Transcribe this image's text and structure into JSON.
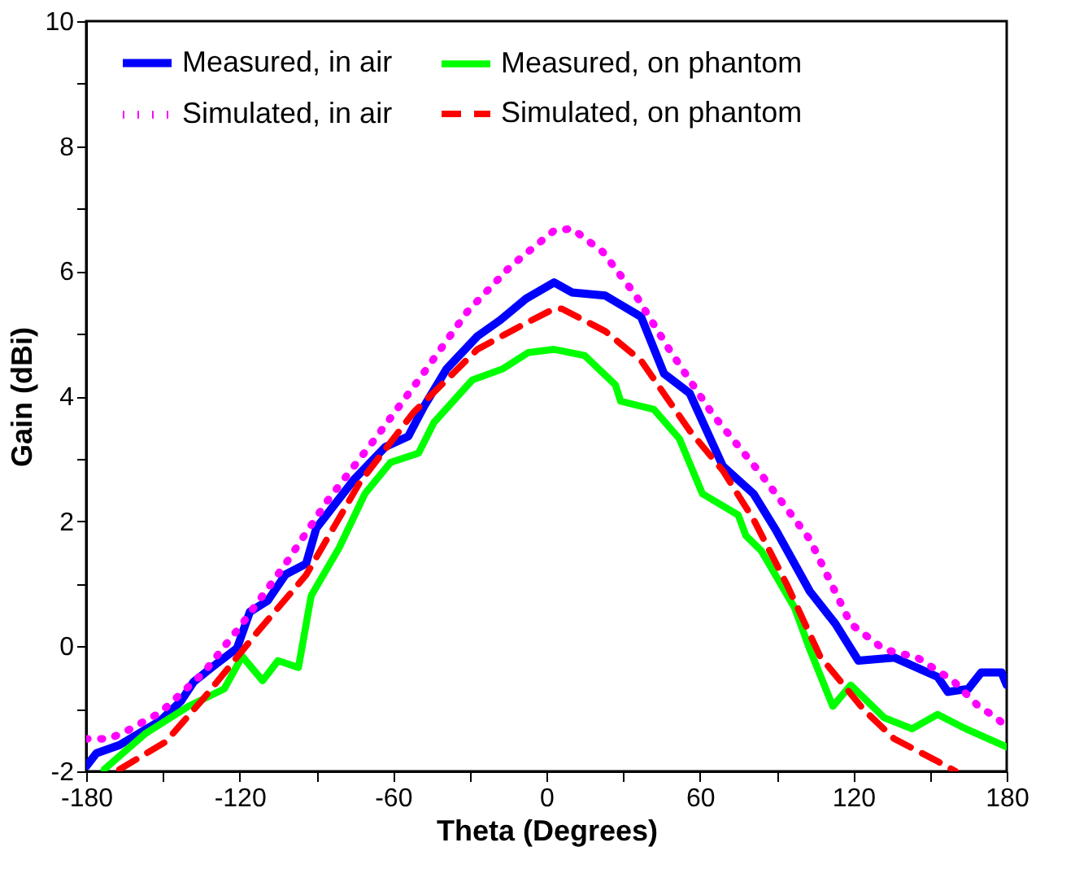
{
  "chart_data": {
    "type": "line",
    "xlabel": "Theta (Degrees)",
    "ylabel": "Gain (dBi)",
    "xlim": [
      -180,
      180
    ],
    "ylim": [
      -2,
      10
    ],
    "xticks": [
      -180,
      {
        "value": -150,
        "label": null
      },
      -120,
      {
        "value": -90,
        "label": null
      },
      -60,
      {
        "value": -30,
        "label": null
      },
      0,
      {
        "value": 30,
        "label": null
      },
      60,
      {
        "value": 90,
        "label": null
      },
      120,
      {
        "value": 150,
        "label": null
      },
      180
    ],
    "yticks": [
      -2,
      {
        "value": -1,
        "label": null
      },
      0,
      {
        "value": 1,
        "label": null
      },
      2,
      {
        "value": 3,
        "label": null
      },
      4,
      {
        "value": 5,
        "label": null
      },
      6,
      {
        "value": 7,
        "label": null
      },
      8,
      {
        "value": 9,
        "label": null
      },
      10
    ],
    "grid": false,
    "legend": "top",
    "marker": "none",
    "series": [
      {
        "name": "Measured, in air",
        "color": "#0000ff",
        "line_style": "solid",
        "x": [
          -180,
          -176,
          -167,
          -151,
          -143,
          -138,
          -130,
          -121,
          -116,
          -109,
          -102,
          -94,
          -90,
          -75,
          -63,
          -54,
          -48,
          -39,
          -27,
          -18,
          -8,
          3,
          10,
          23,
          37,
          46,
          56,
          69,
          81,
          90,
          103,
          113,
          122,
          136,
          153,
          157,
          165,
          170,
          178,
          180
        ],
        "values": [
          -1.92,
          -1.71,
          -1.58,
          -1.19,
          -0.88,
          -0.57,
          -0.31,
          -0.03,
          0.55,
          0.73,
          1.15,
          1.32,
          1.89,
          2.68,
          3.19,
          3.36,
          3.83,
          4.44,
          4.96,
          5.22,
          5.56,
          5.82,
          5.66,
          5.61,
          5.27,
          4.36,
          4.05,
          2.88,
          2.44,
          1.84,
          0.88,
          0.36,
          -0.23,
          -0.18,
          -0.49,
          -0.73,
          -0.68,
          -0.42,
          -0.42,
          -0.62
        ]
      },
      {
        "name": "Simulated, in air",
        "color": "#ff00ff",
        "line_style": "dotted",
        "x": [
          -180,
          -171,
          -164,
          -151,
          -134,
          -119,
          -102,
          -86,
          -67,
          -50,
          -31,
          -14,
          3,
          10,
          22,
          35,
          48,
          65,
          84,
          103,
          119,
          132,
          145,
          159,
          169,
          176,
          180
        ],
        "values": [
          -1.48,
          -1.48,
          -1.35,
          -1.06,
          -0.42,
          0.36,
          1.32,
          2.31,
          3.32,
          4.26,
          5.35,
          6.08,
          6.65,
          6.68,
          6.31,
          5.61,
          4.75,
          3.71,
          2.75,
          1.71,
          0.36,
          -0.05,
          -0.18,
          -0.55,
          -0.96,
          -1.14,
          -1.3
        ]
      },
      {
        "name": "Measured, on phantom",
        "color": "#00ff00",
        "line_style": "solid",
        "x": [
          -173,
          -157,
          -140,
          -126,
          -119,
          -111,
          -105,
          -97,
          -92,
          -81,
          -71,
          -61,
          -50,
          -44,
          -29,
          -17,
          -7,
          3,
          15,
          27,
          29,
          42,
          52,
          61,
          75,
          78,
          84,
          97,
          103,
          112,
          119,
          132,
          143,
          153,
          164,
          180
        ],
        "values": [
          -1.97,
          -1.4,
          -0.96,
          -0.68,
          -0.16,
          -0.55,
          -0.23,
          -0.34,
          0.81,
          1.58,
          2.44,
          2.94,
          3.09,
          3.58,
          4.26,
          4.44,
          4.7,
          4.75,
          4.65,
          4.18,
          3.92,
          3.79,
          3.32,
          2.44,
          2.1,
          1.77,
          1.53,
          0.62,
          -0.05,
          -0.96,
          -0.62,
          -1.14,
          -1.32,
          -1.09,
          -1.32,
          -1.61
        ]
      },
      {
        "name": "Simulated, on phantom",
        "color": "#ff0000",
        "line_style": "dashed",
        "x": [
          -167,
          -149,
          -134,
          -113,
          -94,
          -73,
          -52,
          -27,
          -8,
          3,
          6,
          23,
          37,
          56,
          69,
          81,
          94,
          107,
          124,
          136,
          153,
          160
        ],
        "values": [
          -1.97,
          -1.53,
          -0.83,
          0.23,
          1.14,
          2.62,
          3.74,
          4.75,
          5.17,
          5.4,
          5.4,
          5.04,
          4.57,
          3.45,
          2.81,
          2.03,
          0.99,
          -0.16,
          -1.01,
          -1.48,
          -1.84,
          -2.0
        ]
      }
    ]
  }
}
